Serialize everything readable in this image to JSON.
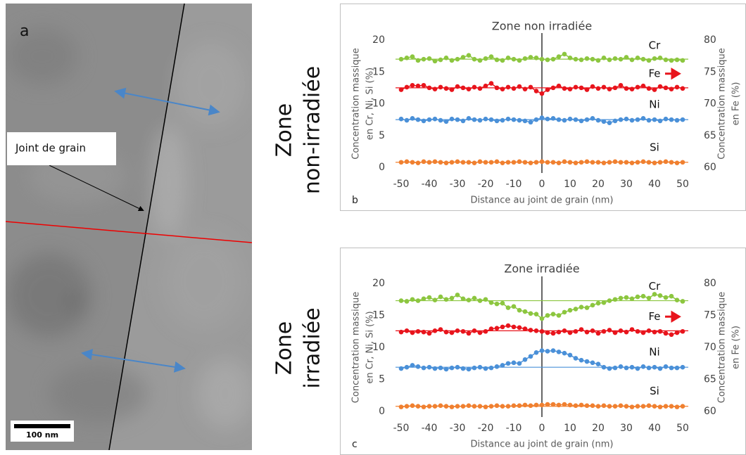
{
  "micrograph": {
    "label": "a",
    "annotation": "Joint de grain",
    "scale_bar": "100 nm"
  },
  "row_labels": [
    [
      "Zone",
      "non-irradiée"
    ],
    [
      "Zone",
      "irradiée"
    ]
  ],
  "chart_data": [
    {
      "type": "line",
      "title": "Zone non irradiée",
      "panel_label": "b",
      "xlabel": "Distance au joint de grain (nm)",
      "ylabel": [
        "Concentration massique",
        "en Cr, Ni, Si (%)"
      ],
      "y2label": [
        "Concentration massique",
        "en Fe (%)"
      ],
      "x": [
        -50,
        -48,
        -46,
        -44,
        -42,
        -40,
        -38,
        -36,
        -34,
        -32,
        -30,
        -28,
        -26,
        -24,
        -22,
        -20,
        -18,
        -16,
        -14,
        -12,
        -10,
        -8,
        -6,
        -4,
        -2,
        0,
        2,
        4,
        6,
        8,
        10,
        12,
        14,
        16,
        18,
        20,
        22,
        24,
        26,
        28,
        30,
        32,
        34,
        36,
        38,
        40,
        42,
        44,
        46,
        48,
        50
      ],
      "xlim": [
        -52,
        52
      ],
      "xticks": [
        -50,
        -40,
        -30,
        -20,
        -10,
        0,
        10,
        20,
        30,
        40,
        50
      ],
      "ylim": [
        0,
        20
      ],
      "yticks": [
        0,
        5,
        10,
        15,
        20
      ],
      "y2lim": [
        60,
        80
      ],
      "y2ticks": [
        60,
        65,
        70,
        75,
        80
      ],
      "series": [
        {
          "name": "Cr",
          "color": "#8cc63f",
          "reference": 17,
          "values": [
            17.0,
            17.2,
            17.4,
            16.8,
            17.0,
            17.1,
            16.7,
            16.9,
            17.2,
            16.8,
            17.0,
            17.3,
            17.6,
            17.0,
            16.8,
            17.1,
            17.4,
            16.9,
            16.8,
            17.2,
            17.0,
            16.8,
            17.1,
            17.3,
            17.2,
            17.0,
            16.9,
            17.0,
            17.4,
            17.8,
            17.2,
            17.0,
            16.9,
            17.1,
            17.0,
            16.8,
            17.2,
            16.9,
            17.1,
            17.0,
            17.3,
            16.9,
            17.2,
            17.0,
            16.8,
            17.1,
            17.2,
            16.9,
            16.8,
            16.9,
            16.8
          ]
        },
        {
          "name": "Fe",
          "color": "#e8141c",
          "axis": "y2",
          "reference": 72.5,
          "values": [
            72.2,
            72.6,
            72.9,
            72.8,
            72.9,
            72.5,
            72.3,
            72.6,
            72.4,
            72.2,
            72.7,
            72.5,
            72.3,
            72.6,
            72.4,
            72.8,
            73.2,
            72.5,
            72.3,
            72.6,
            72.4,
            72.7,
            72.3,
            72.6,
            72.0,
            71.6,
            72.2,
            72.5,
            72.8,
            72.4,
            72.3,
            72.6,
            72.5,
            72.2,
            72.7,
            72.4,
            72.6,
            72.3,
            72.5,
            72.9,
            72.4,
            72.3,
            72.6,
            72.8,
            72.4,
            72.2,
            72.7,
            72.5,
            72.3,
            72.6,
            72.4
          ]
        },
        {
          "name": "Ni",
          "color": "#4a90d8",
          "reference": 7.5,
          "values": [
            7.6,
            7.4,
            7.7,
            7.5,
            7.3,
            7.5,
            7.6,
            7.4,
            7.2,
            7.6,
            7.5,
            7.3,
            7.7,
            7.5,
            7.4,
            7.6,
            7.5,
            7.3,
            7.4,
            7.6,
            7.5,
            7.4,
            7.3,
            7.1,
            7.5,
            7.8,
            7.6,
            7.7,
            7.5,
            7.4,
            7.6,
            7.5,
            7.3,
            7.5,
            7.7,
            7.4,
            7.2,
            7.0,
            7.3,
            7.5,
            7.6,
            7.4,
            7.5,
            7.7,
            7.4,
            7.5,
            7.3,
            7.6,
            7.5,
            7.4,
            7.5
          ]
        },
        {
          "name": "Si",
          "color": "#f08030",
          "reference": 0.8,
          "values": [
            0.8,
            0.9,
            0.8,
            0.7,
            0.9,
            0.8,
            0.9,
            0.8,
            0.7,
            0.8,
            0.9,
            0.8,
            0.8,
            0.7,
            0.9,
            0.8,
            0.8,
            0.9,
            0.7,
            0.8,
            0.8,
            0.9,
            0.8,
            0.7,
            0.8,
            0.9,
            0.8,
            0.8,
            0.7,
            0.9,
            0.8,
            0.7,
            0.8,
            0.9,
            0.8,
            0.8,
            0.7,
            0.8,
            0.9,
            0.8,
            0.8,
            0.7,
            0.8,
            0.9,
            0.8,
            0.7,
            0.8,
            0.9,
            0.8,
            0.7,
            0.8
          ]
        }
      ]
    },
    {
      "type": "line",
      "title": "Zone irradiée",
      "panel_label": "c",
      "xlabel": "Distance au joint de grain (nm)",
      "ylabel": [
        "Concentration massique",
        "en Cr, Ni, Si (%)"
      ],
      "y2label": [
        "Concentration massique",
        "en Fe (%)"
      ],
      "x": [
        -50,
        -48,
        -46,
        -44,
        -42,
        -40,
        -38,
        -36,
        -34,
        -32,
        -30,
        -28,
        -26,
        -24,
        -22,
        -20,
        -18,
        -16,
        -14,
        -12,
        -10,
        -8,
        -6,
        -4,
        -2,
        0,
        2,
        4,
        6,
        8,
        10,
        12,
        14,
        16,
        18,
        20,
        22,
        24,
        26,
        28,
        30,
        32,
        34,
        36,
        38,
        40,
        42,
        44,
        46,
        48,
        50
      ],
      "xlim": [
        -52,
        52
      ],
      "xticks": [
        -50,
        -40,
        -30,
        -20,
        -10,
        0,
        10,
        20,
        30,
        40,
        50
      ],
      "ylim": [
        0,
        20
      ],
      "yticks": [
        0,
        5,
        10,
        15,
        20
      ],
      "y2lim": [
        60,
        80
      ],
      "y2ticks": [
        60,
        65,
        70,
        75,
        80
      ],
      "series": [
        {
          "name": "Cr",
          "color": "#8cc63f",
          "reference": 17.3,
          "values": [
            17.3,
            17.2,
            17.5,
            17.3,
            17.6,
            17.8,
            17.4,
            17.9,
            17.5,
            17.7,
            18.2,
            17.6,
            17.4,
            17.7,
            17.3,
            17.5,
            17.0,
            16.8,
            16.9,
            16.2,
            16.4,
            15.8,
            15.6,
            15.3,
            15.2,
            14.5,
            15.0,
            15.2,
            15.0,
            15.5,
            15.8,
            16.0,
            16.3,
            16.2,
            16.6,
            16.9,
            17.0,
            17.3,
            17.5,
            17.7,
            17.8,
            17.6,
            17.9,
            18.0,
            17.7,
            18.3,
            18.1,
            17.8,
            18.0,
            17.4,
            17.2
          ]
        },
        {
          "name": "Fe",
          "color": "#e8141c",
          "axis": "y2",
          "reference": 72.6,
          "values": [
            72.4,
            72.6,
            72.3,
            72.5,
            72.4,
            72.2,
            72.6,
            72.8,
            72.4,
            72.3,
            72.6,
            72.5,
            72.2,
            72.6,
            72.3,
            72.5,
            72.9,
            73.0,
            73.2,
            73.4,
            73.2,
            73.1,
            72.9,
            72.7,
            72.6,
            72.5,
            72.3,
            72.2,
            72.4,
            72.6,
            72.3,
            72.5,
            72.8,
            72.4,
            72.6,
            72.2,
            72.5,
            72.7,
            72.3,
            72.6,
            72.4,
            72.8,
            72.5,
            72.3,
            72.6,
            72.4,
            72.5,
            72.2,
            72.0,
            72.3,
            72.5
          ]
        },
        {
          "name": "Ni",
          "color": "#4a90d8",
          "reference": 6.9,
          "values": [
            6.7,
            6.9,
            7.2,
            7.0,
            6.8,
            6.9,
            6.7,
            6.8,
            6.6,
            6.8,
            6.9,
            6.7,
            6.6,
            6.8,
            6.9,
            6.7,
            6.8,
            7.0,
            7.2,
            7.5,
            7.6,
            7.5,
            8.1,
            8.6,
            9.2,
            9.5,
            9.4,
            9.5,
            9.3,
            9.1,
            8.8,
            8.3,
            8.0,
            7.8,
            7.6,
            7.4,
            6.9,
            6.7,
            6.8,
            7.0,
            6.8,
            6.9,
            6.7,
            7.0,
            6.8,
            6.9,
            6.7,
            7.0,
            6.8,
            6.8,
            6.9
          ]
        },
        {
          "name": "Si",
          "color": "#f08030",
          "reference": 0.8,
          "values": [
            0.7,
            0.8,
            0.9,
            0.8,
            0.7,
            0.8,
            0.8,
            0.9,
            0.8,
            0.7,
            0.8,
            0.8,
            0.9,
            0.8,
            0.8,
            0.7,
            0.8,
            0.9,
            0.8,
            0.8,
            0.9,
            0.9,
            1.0,
            0.9,
            1.0,
            1.0,
            1.1,
            1.1,
            1.0,
            1.1,
            1.0,
            0.9,
            1.0,
            0.9,
            0.9,
            0.8,
            0.9,
            0.8,
            0.8,
            0.9,
            0.8,
            0.7,
            0.8,
            0.8,
            0.9,
            0.8,
            0.7,
            0.8,
            0.8,
            0.7,
            0.8
          ]
        }
      ]
    }
  ]
}
